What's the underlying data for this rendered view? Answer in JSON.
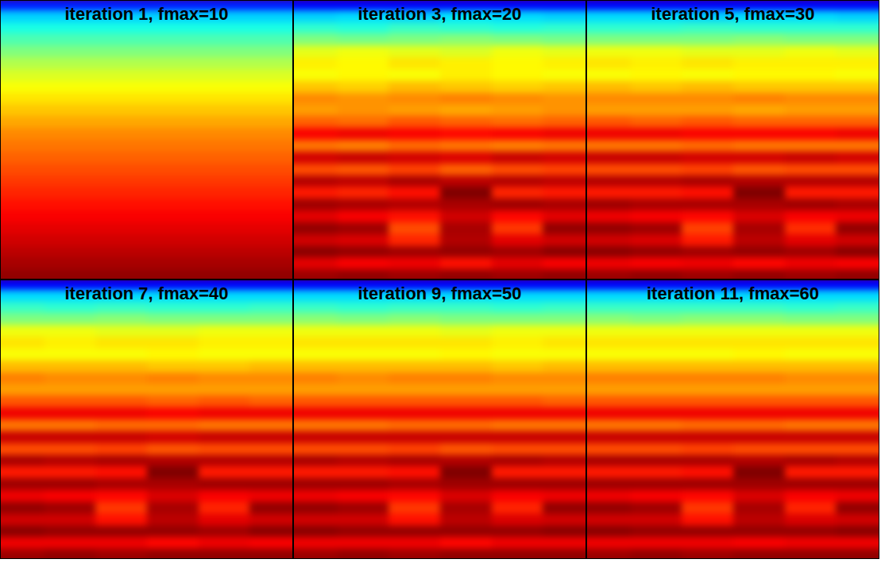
{
  "chart_data": [
    {
      "type": "heatmap",
      "title": "iteration 1, fmax=10",
      "tick_labels": false,
      "zlim": [
        0,
        1
      ],
      "cells": [
        [
          0.15,
          0.15,
          0.15,
          0.15,
          0.15,
          0.15
        ],
        [
          0.33,
          0.33,
          0.33,
          0.33,
          0.33,
          0.33
        ],
        [
          0.4,
          0.4,
          0.4,
          0.4,
          0.4,
          0.4
        ],
        [
          0.45,
          0.45,
          0.45,
          0.45,
          0.45,
          0.45
        ],
        [
          0.5,
          0.5,
          0.5,
          0.5,
          0.5,
          0.5
        ],
        [
          0.55,
          0.55,
          0.55,
          0.55,
          0.55,
          0.55
        ],
        [
          0.59,
          0.59,
          0.59,
          0.59,
          0.59,
          0.59
        ],
        [
          0.62,
          0.62,
          0.62,
          0.62,
          0.62,
          0.62
        ],
        [
          0.65,
          0.65,
          0.65,
          0.65,
          0.65,
          0.65
        ],
        [
          0.68,
          0.68,
          0.68,
          0.68,
          0.68,
          0.68
        ],
        [
          0.71,
          0.71,
          0.71,
          0.71,
          0.71,
          0.71
        ],
        [
          0.74,
          0.74,
          0.74,
          0.74,
          0.74,
          0.74
        ],
        [
          0.76,
          0.76,
          0.76,
          0.76,
          0.76,
          0.76
        ],
        [
          0.78,
          0.78,
          0.78,
          0.78,
          0.78,
          0.78
        ],
        [
          0.8,
          0.8,
          0.8,
          0.8,
          0.8,
          0.8
        ],
        [
          0.82,
          0.82,
          0.82,
          0.82,
          0.82,
          0.82
        ],
        [
          0.84,
          0.84,
          0.84,
          0.84,
          0.84,
          0.84
        ],
        [
          0.86,
          0.86,
          0.86,
          0.86,
          0.86,
          0.86
        ],
        [
          0.88,
          0.88,
          0.88,
          0.88,
          0.88,
          0.88
        ],
        [
          0.9,
          0.9,
          0.9,
          0.9,
          0.9,
          0.9
        ],
        [
          0.92,
          0.92,
          0.92,
          0.92,
          0.92,
          0.92
        ],
        [
          0.94,
          0.94,
          0.94,
          0.94,
          0.94,
          0.94
        ],
        [
          0.96,
          0.96,
          0.96,
          0.96,
          0.96,
          0.96
        ],
        [
          0.98,
          0.98,
          0.98,
          0.98,
          0.98,
          0.98
        ]
      ]
    },
    {
      "type": "heatmap",
      "title": "iteration 3, fmax=20",
      "tick_labels": false,
      "zlim": [
        0,
        1
      ],
      "cells": [
        [
          0.12,
          0.12,
          0.12,
          0.12,
          0.12,
          0.12
        ],
        [
          0.33,
          0.34,
          0.33,
          0.35,
          0.34,
          0.33
        ],
        [
          0.42,
          0.41,
          0.43,
          0.42,
          0.41,
          0.42
        ],
        [
          0.5,
          0.49,
          0.5,
          0.51,
          0.5,
          0.49
        ],
        [
          0.6,
          0.61,
          0.6,
          0.59,
          0.61,
          0.6
        ],
        [
          0.64,
          0.63,
          0.65,
          0.64,
          0.63,
          0.64
        ],
        [
          0.62,
          0.63,
          0.62,
          0.64,
          0.63,
          0.62
        ],
        [
          0.68,
          0.67,
          0.69,
          0.68,
          0.67,
          0.68
        ],
        [
          0.74,
          0.73,
          0.74,
          0.75,
          0.74,
          0.73
        ],
        [
          0.72,
          0.73,
          0.72,
          0.71,
          0.72,
          0.73
        ],
        [
          0.78,
          0.77,
          0.79,
          0.78,
          0.77,
          0.78
        ],
        [
          0.88,
          0.89,
          0.88,
          0.87,
          0.88,
          0.89
        ],
        [
          0.76,
          0.75,
          0.77,
          0.76,
          0.75,
          0.76
        ],
        [
          0.92,
          0.93,
          0.92,
          0.91,
          0.93,
          0.92
        ],
        [
          0.8,
          0.79,
          0.81,
          0.78,
          0.8,
          0.81
        ],
        [
          0.95,
          0.94,
          0.96,
          0.94,
          0.95,
          0.94
        ],
        [
          0.85,
          0.84,
          0.86,
          1.0,
          0.84,
          0.85
        ],
        [
          0.97,
          0.96,
          0.95,
          0.96,
          0.97,
          0.96
        ],
        [
          0.9,
          0.88,
          0.86,
          0.92,
          0.87,
          0.9
        ],
        [
          0.98,
          0.97,
          0.8,
          0.96,
          0.82,
          0.98
        ],
        [
          0.92,
          0.91,
          0.84,
          0.95,
          0.9,
          0.92
        ],
        [
          0.99,
          0.98,
          0.97,
          0.98,
          0.97,
          0.99
        ],
        [
          0.9,
          0.88,
          0.89,
          0.86,
          0.9,
          0.88
        ],
        [
          0.97,
          0.98,
          0.97,
          0.98,
          0.97,
          0.98
        ]
      ]
    },
    {
      "type": "heatmap",
      "title": "iteration 5, fmax=30",
      "tick_labels": false,
      "zlim": [
        0,
        1
      ],
      "cells": [
        [
          0.12,
          0.12,
          0.12,
          0.12,
          0.12,
          0.12
        ],
        [
          0.34,
          0.34,
          0.33,
          0.34,
          0.34,
          0.33
        ],
        [
          0.42,
          0.42,
          0.43,
          0.42,
          0.42,
          0.42
        ],
        [
          0.5,
          0.5,
          0.5,
          0.51,
          0.5,
          0.5
        ],
        [
          0.61,
          0.61,
          0.6,
          0.6,
          0.61,
          0.6
        ],
        [
          0.65,
          0.64,
          0.65,
          0.64,
          0.64,
          0.64
        ],
        [
          0.62,
          0.63,
          0.62,
          0.63,
          0.63,
          0.62
        ],
        [
          0.69,
          0.68,
          0.69,
          0.68,
          0.68,
          0.68
        ],
        [
          0.74,
          0.74,
          0.74,
          0.75,
          0.74,
          0.74
        ],
        [
          0.72,
          0.72,
          0.72,
          0.71,
          0.72,
          0.72
        ],
        [
          0.79,
          0.78,
          0.79,
          0.78,
          0.78,
          0.78
        ],
        [
          0.89,
          0.89,
          0.88,
          0.88,
          0.88,
          0.89
        ],
        [
          0.76,
          0.76,
          0.77,
          0.76,
          0.76,
          0.76
        ],
        [
          0.93,
          0.93,
          0.92,
          0.92,
          0.93,
          0.92
        ],
        [
          0.8,
          0.8,
          0.81,
          0.79,
          0.8,
          0.8
        ],
        [
          0.95,
          0.95,
          0.96,
          0.95,
          0.95,
          0.95
        ],
        [
          0.85,
          0.85,
          0.86,
          1.0,
          0.85,
          0.85
        ],
        [
          0.97,
          0.96,
          0.96,
          0.96,
          0.97,
          0.96
        ],
        [
          0.89,
          0.88,
          0.87,
          0.91,
          0.88,
          0.89
        ],
        [
          0.98,
          0.97,
          0.81,
          0.96,
          0.83,
          0.98
        ],
        [
          0.92,
          0.91,
          0.85,
          0.94,
          0.9,
          0.92
        ],
        [
          0.99,
          0.98,
          0.97,
          0.98,
          0.97,
          0.99
        ],
        [
          0.89,
          0.88,
          0.89,
          0.87,
          0.89,
          0.88
        ],
        [
          0.97,
          0.98,
          0.97,
          0.98,
          0.97,
          0.98
        ]
      ]
    },
    {
      "type": "heatmap",
      "title": "iteration 7, fmax=40",
      "tick_labels": false,
      "zlim": [
        0,
        1
      ],
      "cells": [
        [
          0.12,
          0.12,
          0.12,
          0.12,
          0.12,
          0.12
        ],
        [
          0.34,
          0.34,
          0.34,
          0.34,
          0.34,
          0.34
        ],
        [
          0.43,
          0.42,
          0.43,
          0.42,
          0.42,
          0.43
        ],
        [
          0.5,
          0.5,
          0.51,
          0.5,
          0.5,
          0.5
        ],
        [
          0.61,
          0.61,
          0.6,
          0.6,
          0.61,
          0.61
        ],
        [
          0.65,
          0.64,
          0.65,
          0.65,
          0.64,
          0.64
        ],
        [
          0.62,
          0.62,
          0.62,
          0.63,
          0.62,
          0.62
        ],
        [
          0.69,
          0.69,
          0.69,
          0.68,
          0.68,
          0.69
        ],
        [
          0.75,
          0.74,
          0.74,
          0.75,
          0.74,
          0.74
        ],
        [
          0.72,
          0.72,
          0.72,
          0.72,
          0.72,
          0.72
        ],
        [
          0.79,
          0.79,
          0.79,
          0.78,
          0.79,
          0.78
        ],
        [
          0.89,
          0.89,
          0.89,
          0.88,
          0.89,
          0.89
        ],
        [
          0.76,
          0.76,
          0.77,
          0.77,
          0.76,
          0.76
        ],
        [
          0.93,
          0.93,
          0.93,
          0.92,
          0.93,
          0.93
        ],
        [
          0.8,
          0.8,
          0.81,
          0.79,
          0.8,
          0.8
        ],
        [
          0.96,
          0.95,
          0.96,
          0.95,
          0.95,
          0.95
        ],
        [
          0.85,
          0.85,
          0.86,
          1.0,
          0.85,
          0.85
        ],
        [
          0.97,
          0.97,
          0.96,
          0.96,
          0.97,
          0.97
        ],
        [
          0.89,
          0.88,
          0.87,
          0.91,
          0.88,
          0.89
        ],
        [
          0.98,
          0.97,
          0.82,
          0.96,
          0.84,
          0.98
        ],
        [
          0.92,
          0.92,
          0.86,
          0.94,
          0.9,
          0.92
        ],
        [
          0.99,
          0.98,
          0.98,
          0.98,
          0.97,
          0.99
        ],
        [
          0.89,
          0.89,
          0.89,
          0.87,
          0.89,
          0.88
        ],
        [
          0.97,
          0.98,
          0.97,
          0.98,
          0.98,
          0.98
        ]
      ]
    },
    {
      "type": "heatmap",
      "title": "iteration 9, fmax=50",
      "tick_labels": false,
      "zlim": [
        0,
        1
      ],
      "cells": [
        [
          0.12,
          0.12,
          0.12,
          0.12,
          0.12,
          0.12
        ],
        [
          0.34,
          0.34,
          0.34,
          0.34,
          0.34,
          0.34
        ],
        [
          0.43,
          0.42,
          0.43,
          0.43,
          0.42,
          0.43
        ],
        [
          0.51,
          0.5,
          0.51,
          0.5,
          0.5,
          0.5
        ],
        [
          0.61,
          0.61,
          0.61,
          0.6,
          0.61,
          0.61
        ],
        [
          0.65,
          0.65,
          0.65,
          0.65,
          0.64,
          0.65
        ],
        [
          0.62,
          0.62,
          0.62,
          0.63,
          0.62,
          0.62
        ],
        [
          0.69,
          0.69,
          0.69,
          0.69,
          0.68,
          0.69
        ],
        [
          0.75,
          0.74,
          0.75,
          0.75,
          0.74,
          0.74
        ],
        [
          0.72,
          0.72,
          0.72,
          0.72,
          0.72,
          0.72
        ],
        [
          0.79,
          0.79,
          0.79,
          0.79,
          0.79,
          0.78
        ],
        [
          0.89,
          0.89,
          0.89,
          0.89,
          0.89,
          0.89
        ],
        [
          0.76,
          0.76,
          0.77,
          0.77,
          0.76,
          0.76
        ],
        [
          0.93,
          0.93,
          0.93,
          0.93,
          0.93,
          0.93
        ],
        [
          0.8,
          0.8,
          0.81,
          0.79,
          0.8,
          0.8
        ],
        [
          0.96,
          0.95,
          0.96,
          0.95,
          0.96,
          0.95
        ],
        [
          0.85,
          0.85,
          0.86,
          1.0,
          0.85,
          0.85
        ],
        [
          0.97,
          0.97,
          0.96,
          0.97,
          0.97,
          0.97
        ],
        [
          0.89,
          0.88,
          0.87,
          0.91,
          0.88,
          0.89
        ],
        [
          0.98,
          0.97,
          0.82,
          0.96,
          0.84,
          0.98
        ],
        [
          0.92,
          0.92,
          0.86,
          0.94,
          0.91,
          0.92
        ],
        [
          0.99,
          0.98,
          0.98,
          0.98,
          0.98,
          0.99
        ],
        [
          0.89,
          0.89,
          0.89,
          0.87,
          0.89,
          0.89
        ],
        [
          0.97,
          0.98,
          0.97,
          0.98,
          0.98,
          0.98
        ]
      ]
    },
    {
      "type": "heatmap",
      "title": "iteration 11, fmax=60",
      "tick_labels": false,
      "zlim": [
        0,
        1
      ],
      "cells": [
        [
          0.12,
          0.12,
          0.12,
          0.12,
          0.12,
          0.12
        ],
        [
          0.34,
          0.34,
          0.34,
          0.34,
          0.34,
          0.34
        ],
        [
          0.43,
          0.43,
          0.43,
          0.43,
          0.42,
          0.43
        ],
        [
          0.51,
          0.5,
          0.51,
          0.51,
          0.5,
          0.5
        ],
        [
          0.61,
          0.61,
          0.61,
          0.61,
          0.61,
          0.61
        ],
        [
          0.65,
          0.65,
          0.65,
          0.65,
          0.65,
          0.65
        ],
        [
          0.62,
          0.62,
          0.62,
          0.63,
          0.62,
          0.62
        ],
        [
          0.69,
          0.69,
          0.69,
          0.69,
          0.69,
          0.69
        ],
        [
          0.75,
          0.75,
          0.75,
          0.75,
          0.74,
          0.74
        ],
        [
          0.72,
          0.72,
          0.72,
          0.72,
          0.72,
          0.72
        ],
        [
          0.79,
          0.79,
          0.79,
          0.79,
          0.79,
          0.79
        ],
        [
          0.89,
          0.89,
          0.89,
          0.89,
          0.89,
          0.89
        ],
        [
          0.76,
          0.76,
          0.77,
          0.77,
          0.76,
          0.76
        ],
        [
          0.93,
          0.93,
          0.93,
          0.93,
          0.93,
          0.93
        ],
        [
          0.8,
          0.8,
          0.81,
          0.8,
          0.8,
          0.8
        ],
        [
          0.96,
          0.96,
          0.96,
          0.95,
          0.96,
          0.95
        ],
        [
          0.85,
          0.85,
          0.86,
          1.0,
          0.85,
          0.85
        ],
        [
          0.97,
          0.97,
          0.97,
          0.97,
          0.97,
          0.97
        ],
        [
          0.89,
          0.88,
          0.87,
          0.91,
          0.88,
          0.89
        ],
        [
          0.98,
          0.97,
          0.82,
          0.96,
          0.84,
          0.98
        ],
        [
          0.92,
          0.92,
          0.86,
          0.94,
          0.91,
          0.92
        ],
        [
          0.99,
          0.98,
          0.98,
          0.98,
          0.98,
          0.99
        ],
        [
          0.89,
          0.89,
          0.89,
          0.88,
          0.89,
          0.89
        ],
        [
          0.97,
          0.98,
          0.97,
          0.98,
          0.98,
          0.98
        ]
      ]
    }
  ]
}
